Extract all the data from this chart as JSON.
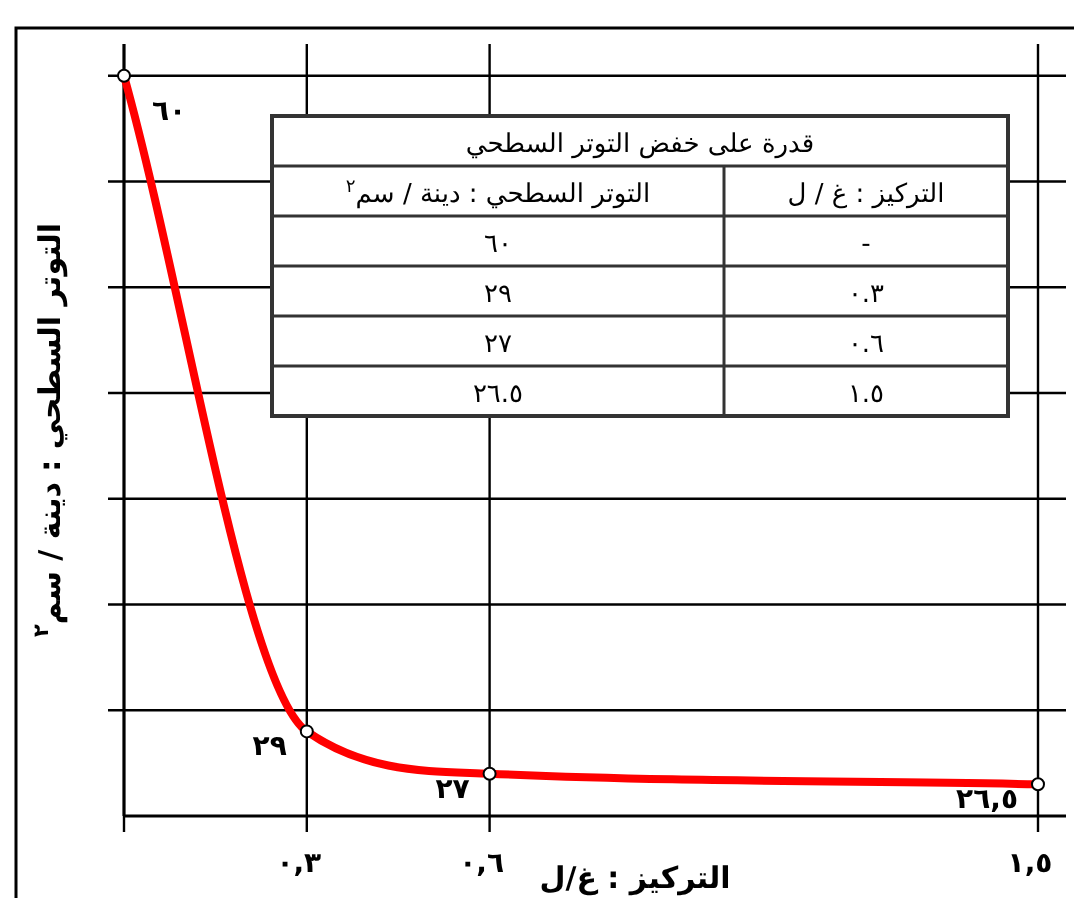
{
  "chart_data": {
    "type": "line",
    "xlabel": "التركيز : غ/ل",
    "ylabel": "التوتر السطحي : دينة / سم$^{٢}$",
    "x": [
      0,
      0.3,
      0.6,
      1.5
    ],
    "series": [
      {
        "color": "#ff0000",
        "values": [
          60,
          29,
          27,
          26.5
        ],
        "value_labels": [
          "٦٠",
          "٢٩",
          "٢٧",
          "٢٦,٥"
        ]
      }
    ],
    "xlim": [
      0,
      1.5
    ],
    "xticks": [
      {
        "value": 0,
        "label": null
      },
      {
        "value": 0.3,
        "label": "٠,٣"
      },
      {
        "value": 0.6,
        "label": "٠,٦"
      },
      {
        "value": 1.5,
        "label": "١,٥"
      }
    ],
    "ylim": [
      25,
      61.5
    ],
    "yticks": [
      {
        "value": 30,
        "label": null
      },
      {
        "value": 35,
        "label": null
      },
      {
        "value": 40,
        "label": null
      },
      {
        "value": 45,
        "label": null
      },
      {
        "value": 50,
        "label": null
      },
      {
        "value": 55,
        "label": null
      },
      {
        "value": 60,
        "label": null
      }
    ],
    "grid": true,
    "marker": "circle",
    "line_style": "solid",
    "annotations": [
      "قدرة على خفض التوتر السطحي",
      "التركيز : غ / ل",
      "التوتر السطحي : دينة / سم$^{٢}$",
      "-",
      "٦٠",
      "٠.٣",
      "٢٩",
      "٠.٦",
      "٢٧",
      "١.٥",
      "٢٦.٥"
    ]
  }
}
